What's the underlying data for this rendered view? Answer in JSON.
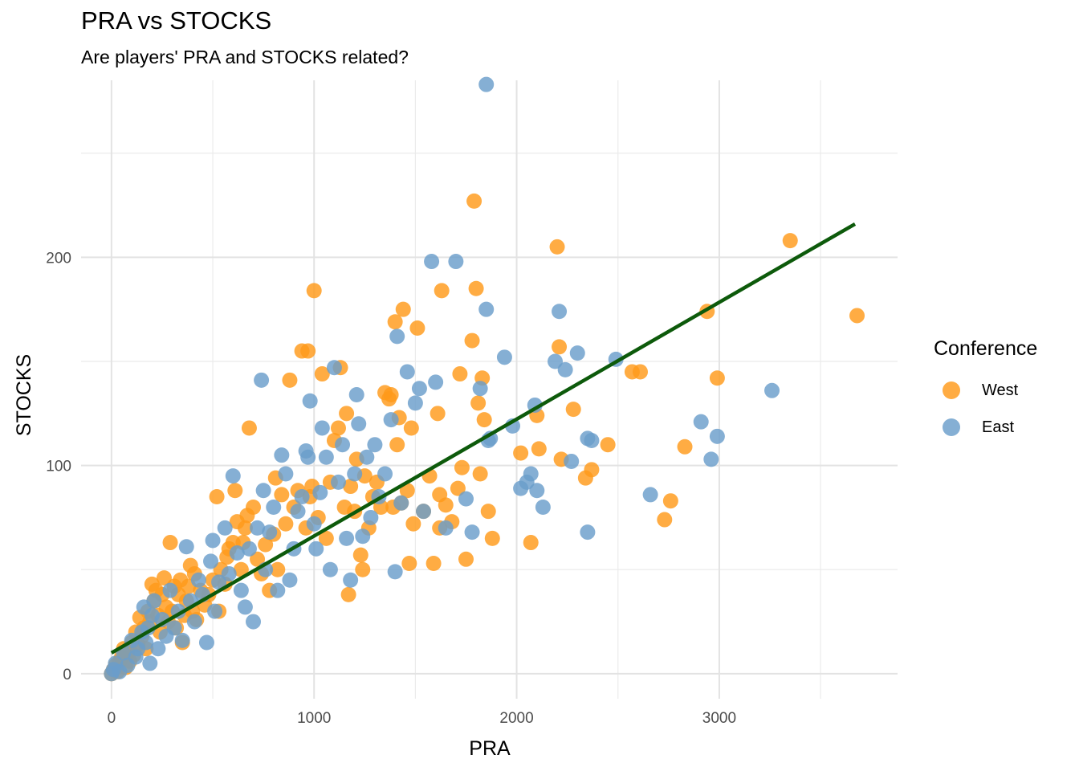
{
  "chart_data": {
    "type": "scatter",
    "title": "PRA vs STOCKS",
    "subtitle": "Are players' PRA and STOCKS related?",
    "xlabel": "PRA",
    "ylabel": "STOCKS",
    "xlim": [
      -150,
      3880
    ],
    "ylim": [
      -12,
      285
    ],
    "x_ticks": [
      0,
      1000,
      2000,
      3000
    ],
    "y_ticks": [
      0,
      100,
      200
    ],
    "x_tick_labels": [
      "0",
      "1000",
      "2000",
      "3000"
    ],
    "y_tick_labels": [
      "0",
      "100",
      "200"
    ],
    "grid": true,
    "legend": {
      "title": "Conference",
      "position": "right",
      "entries": [
        {
          "name": "West",
          "color": "#ff9a1a"
        },
        {
          "name": "East",
          "color": "#6a9dca"
        }
      ]
    },
    "trend_line": {
      "color": "#0d5a0b",
      "x": [
        0,
        3670
      ],
      "y": [
        10,
        216
      ]
    },
    "series": [
      {
        "name": "West",
        "color": "#ff9a1a",
        "points": [
          [
            0,
            0
          ],
          [
            10,
            2
          ],
          [
            20,
            4
          ],
          [
            30,
            1
          ],
          [
            40,
            6
          ],
          [
            50,
            8
          ],
          [
            60,
            12
          ],
          [
            70,
            3
          ],
          [
            80,
            10
          ],
          [
            90,
            6
          ],
          [
            100,
            15
          ],
          [
            110,
            9
          ],
          [
            120,
            20
          ],
          [
            130,
            14
          ],
          [
            140,
            27
          ],
          [
            150,
            18
          ],
          [
            160,
            22
          ],
          [
            170,
            12
          ],
          [
            180,
            30
          ],
          [
            190,
            25
          ],
          [
            200,
            43
          ],
          [
            210,
            35
          ],
          [
            220,
            40
          ],
          [
            230,
            28
          ],
          [
            240,
            20
          ],
          [
            250,
            38
          ],
          [
            260,
            46
          ],
          [
            270,
            32
          ],
          [
            280,
            25
          ],
          [
            290,
            63
          ],
          [
            300,
            30
          ],
          [
            310,
            42
          ],
          [
            320,
            22
          ],
          [
            330,
            38
          ],
          [
            340,
            45
          ],
          [
            350,
            15
          ],
          [
            360,
            28
          ],
          [
            370,
            35
          ],
          [
            380,
            42
          ],
          [
            390,
            52
          ],
          [
            400,
            30
          ],
          [
            410,
            48
          ],
          [
            420,
            26
          ],
          [
            440,
            40
          ],
          [
            460,
            33
          ],
          [
            480,
            38
          ],
          [
            500,
            45
          ],
          [
            520,
            85
          ],
          [
            530,
            30
          ],
          [
            540,
            50
          ],
          [
            560,
            43
          ],
          [
            570,
            56
          ],
          [
            580,
            60
          ],
          [
            600,
            63
          ],
          [
            610,
            88
          ],
          [
            620,
            73
          ],
          [
            640,
            50
          ],
          [
            650,
            63
          ],
          [
            660,
            70
          ],
          [
            670,
            76
          ],
          [
            680,
            118
          ],
          [
            700,
            80
          ],
          [
            720,
            55
          ],
          [
            740,
            48
          ],
          [
            760,
            62
          ],
          [
            780,
            40
          ],
          [
            800,
            67
          ],
          [
            810,
            94
          ],
          [
            820,
            50
          ],
          [
            840,
            86
          ],
          [
            860,
            72
          ],
          [
            880,
            141
          ],
          [
            900,
            80
          ],
          [
            920,
            88
          ],
          [
            940,
            155
          ],
          [
            960,
            70
          ],
          [
            970,
            155
          ],
          [
            980,
            85
          ],
          [
            990,
            90
          ],
          [
            1000,
            184
          ],
          [
            1020,
            75
          ],
          [
            1040,
            144
          ],
          [
            1060,
            65
          ],
          [
            1080,
            92
          ],
          [
            1100,
            112
          ],
          [
            1120,
            118
          ],
          [
            1130,
            147
          ],
          [
            1150,
            80
          ],
          [
            1160,
            125
          ],
          [
            1170,
            38
          ],
          [
            1180,
            90
          ],
          [
            1200,
            78
          ],
          [
            1210,
            103
          ],
          [
            1230,
            57
          ],
          [
            1240,
            50
          ],
          [
            1250,
            95
          ],
          [
            1270,
            70
          ],
          [
            1290,
            85
          ],
          [
            1310,
            92
          ],
          [
            1330,
            80
          ],
          [
            1350,
            135
          ],
          [
            1370,
            132
          ],
          [
            1390,
            80
          ],
          [
            1410,
            110
          ],
          [
            1420,
            123
          ],
          [
            1430,
            82
          ],
          [
            1440,
            175
          ],
          [
            1460,
            88
          ],
          [
            1470,
            53
          ],
          [
            1480,
            118
          ],
          [
            1490,
            72
          ],
          [
            1510,
            166
          ],
          [
            1540,
            78
          ],
          [
            1570,
            95
          ],
          [
            1590,
            53
          ],
          [
            1610,
            125
          ],
          [
            1620,
            86
          ],
          [
            1630,
            184
          ],
          [
            1650,
            81
          ],
          [
            1680,
            73
          ],
          [
            1710,
            89
          ],
          [
            1730,
            99
          ],
          [
            1720,
            144
          ],
          [
            1750,
            55
          ],
          [
            1780,
            160
          ],
          [
            1800,
            185
          ],
          [
            1810,
            130
          ],
          [
            1820,
            96
          ],
          [
            1830,
            142
          ],
          [
            1840,
            122
          ],
          [
            1860,
            78
          ],
          [
            1880,
            65
          ],
          [
            1790,
            227
          ],
          [
            1400,
            169
          ],
          [
            1380,
            134
          ],
          [
            1620,
            70
          ],
          [
            2020,
            106
          ],
          [
            2070,
            63
          ],
          [
            2100,
            124
          ],
          [
            2110,
            108
          ],
          [
            2210,
            157
          ],
          [
            2220,
            103
          ],
          [
            2200,
            205
          ],
          [
            2280,
            127
          ],
          [
            2340,
            94
          ],
          [
            2370,
            98
          ],
          [
            2450,
            110
          ],
          [
            2570,
            145
          ],
          [
            2610,
            145
          ],
          [
            2730,
            74
          ],
          [
            2760,
            83
          ],
          [
            2830,
            109
          ],
          [
            2940,
            174
          ],
          [
            2990,
            142
          ],
          [
            3350,
            208
          ],
          [
            3680,
            172
          ]
        ]
      },
      {
        "name": "East",
        "color": "#6a9dca",
        "points": [
          [
            0,
            0
          ],
          [
            10,
            2
          ],
          [
            20,
            5
          ],
          [
            40,
            1
          ],
          [
            60,
            10
          ],
          [
            80,
            4
          ],
          [
            100,
            16
          ],
          [
            120,
            8
          ],
          [
            130,
            12
          ],
          [
            150,
            20
          ],
          [
            160,
            32
          ],
          [
            170,
            15
          ],
          [
            180,
            22
          ],
          [
            190,
            5
          ],
          [
            200,
            28
          ],
          [
            210,
            35
          ],
          [
            230,
            12
          ],
          [
            250,
            26
          ],
          [
            270,
            18
          ],
          [
            290,
            40
          ],
          [
            310,
            22
          ],
          [
            330,
            30
          ],
          [
            350,
            16
          ],
          [
            370,
            61
          ],
          [
            390,
            35
          ],
          [
            410,
            25
          ],
          [
            430,
            45
          ],
          [
            450,
            38
          ],
          [
            470,
            15
          ],
          [
            490,
            54
          ],
          [
            500,
            64
          ],
          [
            510,
            30
          ],
          [
            530,
            44
          ],
          [
            560,
            70
          ],
          [
            580,
            48
          ],
          [
            600,
            95
          ],
          [
            620,
            58
          ],
          [
            640,
            40
          ],
          [
            660,
            32
          ],
          [
            680,
            60
          ],
          [
            700,
            25
          ],
          [
            720,
            70
          ],
          [
            740,
            141
          ],
          [
            750,
            88
          ],
          [
            760,
            50
          ],
          [
            780,
            68
          ],
          [
            800,
            80
          ],
          [
            820,
            40
          ],
          [
            840,
            105
          ],
          [
            860,
            96
          ],
          [
            880,
            45
          ],
          [
            900,
            60
          ],
          [
            920,
            78
          ],
          [
            940,
            85
          ],
          [
            960,
            107
          ],
          [
            970,
            104
          ],
          [
            980,
            131
          ],
          [
            1000,
            72
          ],
          [
            1010,
            60
          ],
          [
            1030,
            87
          ],
          [
            1040,
            118
          ],
          [
            1060,
            104
          ],
          [
            1080,
            50
          ],
          [
            1100,
            147
          ],
          [
            1120,
            92
          ],
          [
            1140,
            110
          ],
          [
            1160,
            65
          ],
          [
            1180,
            45
          ],
          [
            1200,
            96
          ],
          [
            1210,
            134
          ],
          [
            1220,
            120
          ],
          [
            1240,
            66
          ],
          [
            1260,
            104
          ],
          [
            1280,
            75
          ],
          [
            1300,
            110
          ],
          [
            1320,
            85
          ],
          [
            1350,
            96
          ],
          [
            1380,
            122
          ],
          [
            1400,
            49
          ],
          [
            1410,
            162
          ],
          [
            1430,
            82
          ],
          [
            1460,
            145
          ],
          [
            1500,
            130
          ],
          [
            1520,
            137
          ],
          [
            1540,
            78
          ],
          [
            1580,
            198
          ],
          [
            1600,
            140
          ],
          [
            1650,
            70
          ],
          [
            1700,
            198
          ],
          [
            1750,
            84
          ],
          [
            1780,
            68
          ],
          [
            1820,
            137
          ],
          [
            1850,
            175
          ],
          [
            1860,
            112
          ],
          [
            1870,
            113
          ],
          [
            1850,
            283
          ],
          [
            1940,
            152
          ],
          [
            1980,
            119
          ],
          [
            2020,
            89
          ],
          [
            2050,
            92
          ],
          [
            2070,
            96
          ],
          [
            2100,
            88
          ],
          [
            2090,
            129
          ],
          [
            2130,
            80
          ],
          [
            2190,
            150
          ],
          [
            2210,
            174
          ],
          [
            2240,
            146
          ],
          [
            2270,
            102
          ],
          [
            2300,
            154
          ],
          [
            2350,
            113
          ],
          [
            2370,
            112
          ],
          [
            2350,
            68
          ],
          [
            2490,
            151
          ],
          [
            2660,
            86
          ],
          [
            2910,
            121
          ],
          [
            2960,
            103
          ],
          [
            2990,
            114
          ],
          [
            3260,
            136
          ]
        ]
      }
    ]
  }
}
